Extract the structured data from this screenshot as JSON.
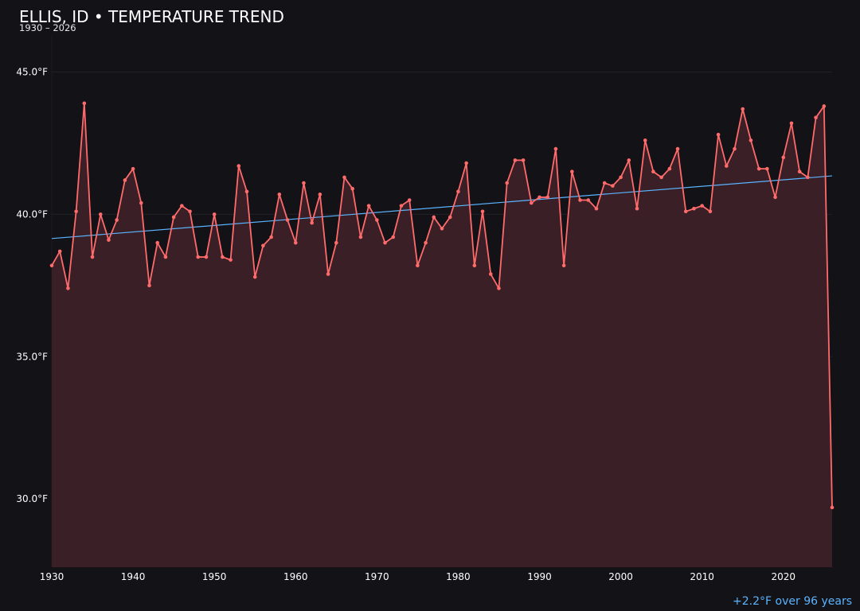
{
  "colors": {
    "background": "#131217",
    "series": "#ff6b6b",
    "fill": "#3a1f27",
    "trend": "#5ab4ff",
    "grid": "#222028",
    "annotation": "#5ab4ff"
  },
  "chart_data": {
    "type": "line",
    "title": "ELLIS, ID • TEMPERATURE TREND",
    "subtitle": "1930 – 2026",
    "ylim": [
      27.6,
      46.3
    ],
    "yticks": [
      30,
      35,
      40,
      45
    ],
    "ytick_labels": [
      "30.0°F",
      "35.0°F",
      "40.0°F",
      "45.0°F"
    ],
    "xlim": [
      1930,
      2026
    ],
    "xticks": [
      1930,
      1940,
      1950,
      1960,
      1970,
      1980,
      1990,
      2000,
      2010,
      2020
    ],
    "xtick_labels": [
      "1930",
      "1940",
      "1950",
      "1960",
      "1970",
      "1980",
      "1990",
      "2000",
      "2010",
      "2020"
    ],
    "grid": true,
    "area_fill": true,
    "series": [
      {
        "x": [
          1930,
          1931,
          1932,
          1933,
          1934,
          1935,
          1936,
          1937,
          1938,
          1939,
          1940,
          1941,
          1942,
          1943,
          1944,
          1945,
          1946,
          1947,
          1948,
          1949,
          1950,
          1951,
          1952,
          1953,
          1954,
          1955,
          1956,
          1957,
          1958,
          1959,
          1960,
          1961,
          1962,
          1963,
          1964,
          1965,
          1966,
          1967,
          1968,
          1969,
          1970,
          1971,
          1972,
          1973,
          1974,
          1975,
          1976,
          1977,
          1978,
          1979,
          1980,
          1981,
          1982,
          1983,
          1984,
          1985,
          1986,
          1987,
          1988,
          1989,
          1990,
          1991,
          1992,
          1993,
          1994,
          1995,
          1996,
          1997,
          1998,
          1999,
          2000,
          2001,
          2002,
          2003,
          2004,
          2005,
          2006,
          2007,
          2008,
          2009,
          2010,
          2011,
          2012,
          2013,
          2014,
          2015,
          2016,
          2017,
          2018,
          2019,
          2020,
          2021,
          2022,
          2023,
          2024,
          2025,
          2026
        ],
        "values": [
          38.2,
          38.7,
          37.4,
          40.1,
          43.9,
          38.5,
          40.0,
          39.1,
          39.8,
          41.2,
          41.6,
          40.4,
          37.5,
          39.0,
          38.5,
          39.9,
          40.3,
          40.1,
          38.5,
          38.5,
          40.0,
          38.5,
          38.4,
          41.7,
          40.8,
          37.8,
          38.9,
          39.2,
          40.7,
          39.8,
          39.0,
          41.1,
          39.7,
          40.7,
          37.9,
          39.0,
          41.3,
          40.9,
          39.2,
          40.3,
          39.8,
          39.0,
          39.2,
          40.3,
          40.5,
          38.2,
          39.0,
          39.9,
          39.5,
          39.9,
          40.8,
          41.8,
          38.2,
          40.1,
          37.9,
          37.4,
          41.1,
          41.9,
          41.9,
          40.4,
          40.6,
          40.6,
          42.3,
          38.2,
          41.5,
          40.5,
          40.5,
          40.2,
          41.1,
          41.0,
          41.3,
          41.9,
          40.2,
          42.6,
          41.5,
          41.3,
          41.6,
          42.3,
          40.1,
          40.2,
          40.3,
          40.1,
          42.8,
          41.7,
          42.3,
          43.7,
          42.6,
          41.6,
          41.6,
          40.6,
          42.0,
          43.2,
          41.5,
          41.3,
          43.4,
          43.8,
          29.7
        ]
      }
    ],
    "trend": {
      "x": [
        1930,
        2026
      ],
      "values": [
        39.15,
        41.35
      ]
    },
    "annotation": "+2.2°F over 96 years"
  }
}
